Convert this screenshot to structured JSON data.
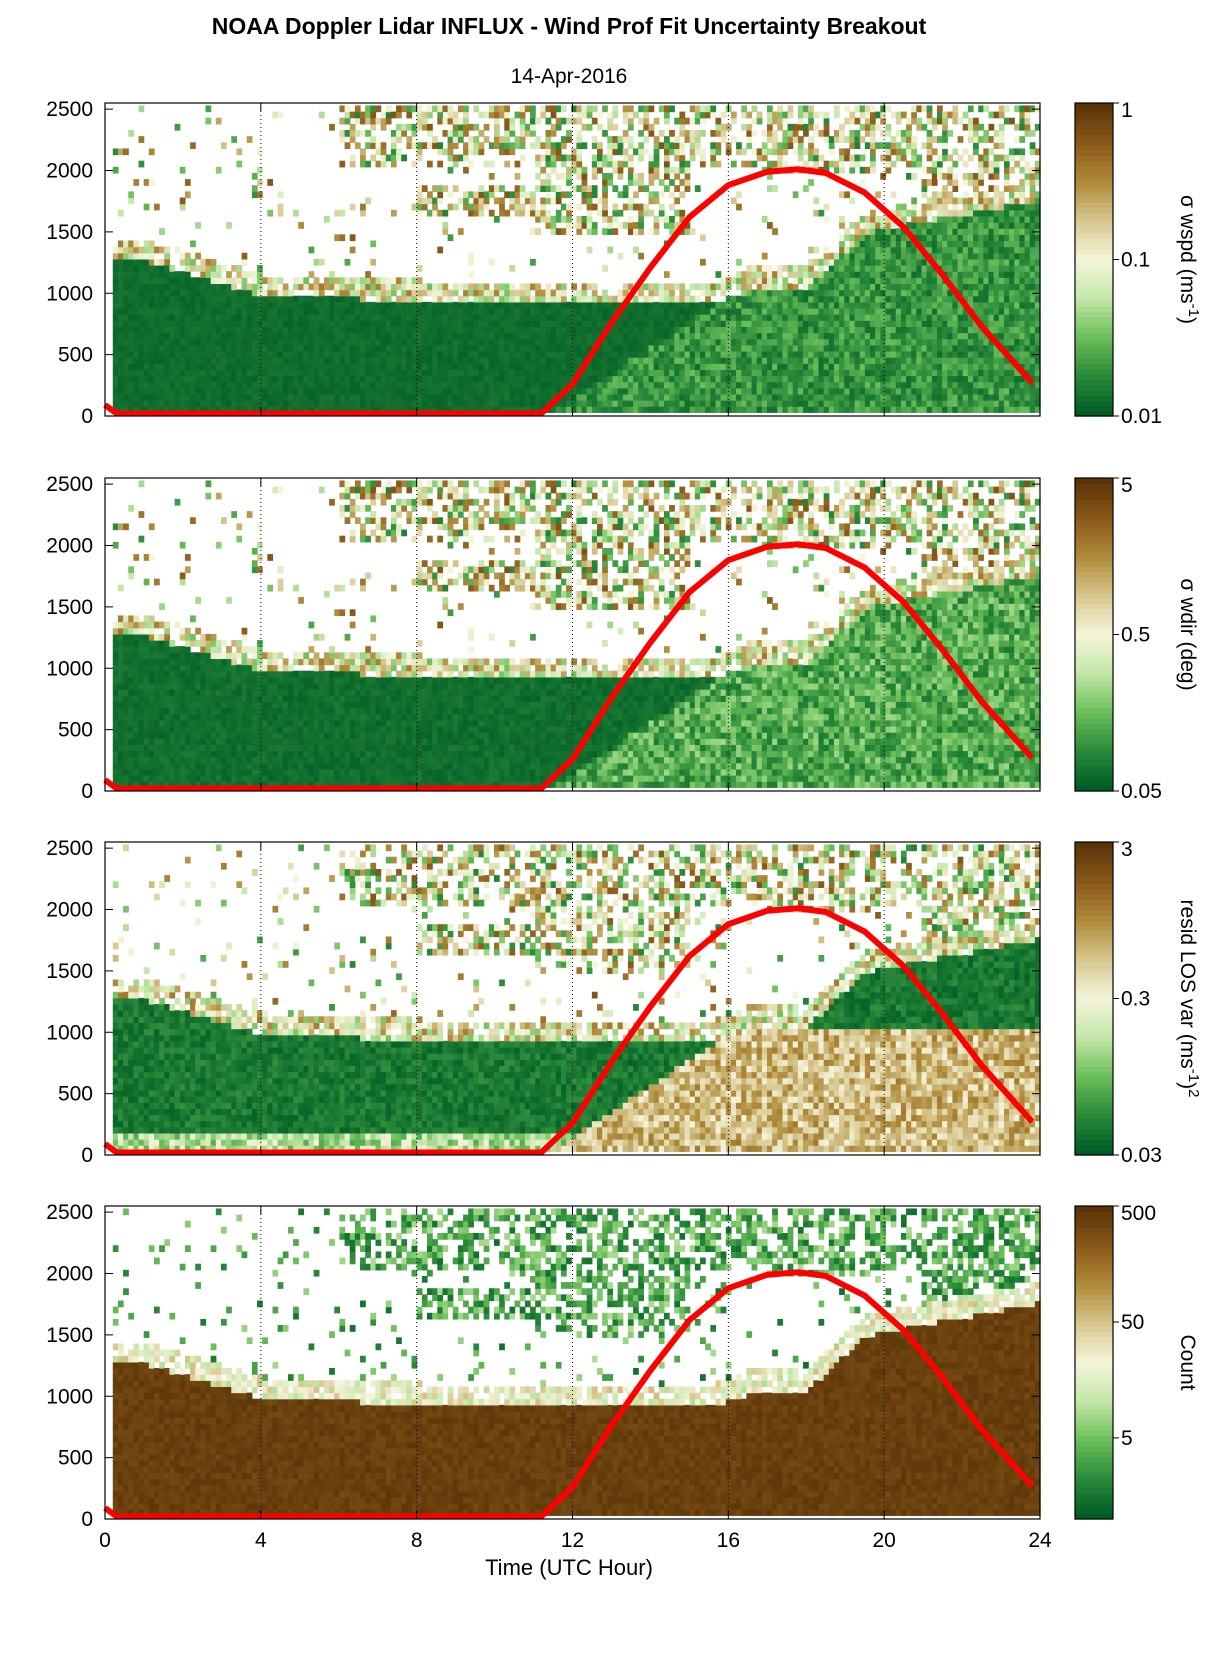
{
  "chart_data": {
    "type": "heatmap",
    "title": "NOAA Doppler Lidar INFLUX - Wind Prof Fit Uncertainty Breakout",
    "subtitle": "14-Apr-2016",
    "xlabel": "Time (UTC Hour)",
    "xlim": [
      0,
      24
    ],
    "x_ticks": [
      0,
      4,
      8,
      12,
      16,
      20,
      24
    ],
    "ylim": [
      0,
      2550
    ],
    "y_ticks": [
      0,
      500,
      1000,
      1500,
      2000,
      2500
    ],
    "grid": "dotted vertical lines at 4, 8, 12, 16, 20",
    "overlay_line": {
      "color": "#ff0000",
      "x": [
        0,
        0.3,
        11.2,
        12,
        13,
        14,
        15,
        16,
        17,
        17.8,
        18.5,
        19.5,
        20.5,
        21.5,
        22.5,
        23.8
      ],
      "y": [
        90,
        20,
        20,
        260,
        760,
        1210,
        1620,
        1880,
        1990,
        2010,
        1980,
        1820,
        1540,
        1150,
        730,
        270
      ]
    },
    "colormap": [
      "#005c26",
      "#2a8a3a",
      "#6cbf5a",
      "#c3e6a8",
      "#f5f5dc",
      "#d8c890",
      "#b08c3c",
      "#8a5a1a",
      "#5a3408"
    ],
    "panels": [
      {
        "name": "wspd",
        "colorbar_label": "σ wspd (ms",
        "colorbar_label_sup": "-1",
        "colorbar_label_end": ")",
        "colorbar_ticks": [
          {
            "label": "1",
            "value": 1
          },
          {
            "label": "0.1",
            "value": 0.1
          },
          {
            "label": "0.01",
            "value": 0.01
          }
        ],
        "log_range": [
          -2,
          0
        ]
      },
      {
        "name": "wdir",
        "colorbar_label": "σ wdir (deg)",
        "colorbar_label_sup": "",
        "colorbar_label_end": "",
        "colorbar_ticks": [
          {
            "label": "5",
            "value": 5
          },
          {
            "label": "0.5",
            "value": 0.5
          },
          {
            "label": "0.05",
            "value": 0.05
          }
        ],
        "log_range": [
          -1.301,
          0.699
        ]
      },
      {
        "name": "resid",
        "colorbar_label": "resid LOS var (ms",
        "colorbar_label_sup": "-1",
        "colorbar_label_end": ")",
        "colorbar_label_sup2": "2",
        "colorbar_ticks": [
          {
            "label": "3",
            "value": 3
          },
          {
            "label": "0.3",
            "value": 0.3
          },
          {
            "label": "0.03",
            "value": 0.03
          }
        ],
        "log_range": [
          -1.523,
          0.477
        ]
      },
      {
        "name": "count",
        "colorbar_label": "Count",
        "colorbar_label_sup": "",
        "colorbar_label_end": "",
        "colorbar_ticks": [
          {
            "label": "500",
            "value": 500
          },
          {
            "label": "50",
            "value": 50
          },
          {
            "label": "5",
            "value": 5
          }
        ],
        "log_range": [
          0,
          2.699
        ]
      }
    ]
  }
}
